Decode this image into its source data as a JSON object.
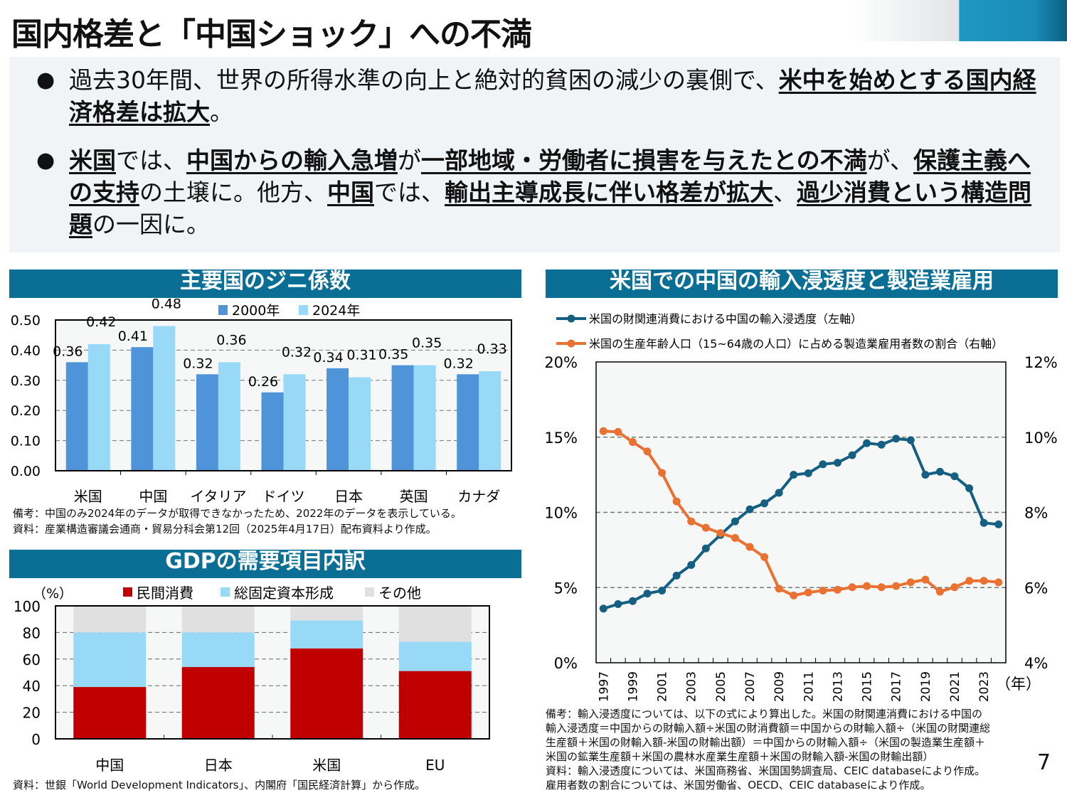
{
  "title": "国内格差と「中国ショック」への不満",
  "bullets": [
    {
      "segments": [
        {
          "text": "過去30年間、世界の所得水準の向上と絶対的貧困の減少の裏側で、",
          "em": false
        },
        {
          "text": "米中を始めとする国内経済格差は拡大",
          "em": true
        },
        {
          "text": "。",
          "em": false
        }
      ]
    },
    {
      "segments": [
        {
          "text": "米国",
          "em": true
        },
        {
          "text": "では、",
          "em": false
        },
        {
          "text": "中国からの輸入急増",
          "em": true
        },
        {
          "text": "が",
          "em": false
        },
        {
          "text": "一部地域・労働者に損害を与えたとの不満",
          "em": true
        },
        {
          "text": "が、",
          "em": false
        },
        {
          "text": "保護主義への支持",
          "em": true
        },
        {
          "text": "の土壌に。他方、",
          "em": false
        },
        {
          "text": "中国",
          "em": true
        },
        {
          "text": "では、",
          "em": false
        },
        {
          "text": "輸出主導成長に伴い格差が拡大",
          "em": true
        },
        {
          "text": "、",
          "em": false
        },
        {
          "text": "過少消費という構造問題",
          "em": true
        },
        {
          "text": "の一因に。",
          "em": false
        }
      ]
    }
  ],
  "colors": {
    "header": "#0b6f95",
    "bar2000": "#4f94d9",
    "bar2024": "#97d9f6",
    "consumption": "#c00000",
    "investment": "#97d9f6",
    "other": "#e0e0e0",
    "import": "#156082",
    "manufacturing": "#e97132",
    "plot_bg": "#f6f7f7"
  },
  "chart_data": [
    {
      "type": "bar",
      "title": "主要国のジニ係数",
      "categories": [
        "米国",
        "中国",
        "イタリア",
        "ドイツ",
        "日本",
        "英国",
        "カナダ"
      ],
      "series": [
        {
          "name": "2000年",
          "values": [
            0.36,
            0.41,
            0.32,
            0.26,
            0.34,
            0.35,
            0.32
          ],
          "labels": [
            "0.36",
            "0.41",
            "0.32",
            "0.26",
            "0.34",
            "0.35",
            "0.32"
          ]
        },
        {
          "name": "2024年",
          "values": [
            0.42,
            0.48,
            0.36,
            0.32,
            0.31,
            0.35,
            0.33
          ],
          "labels": [
            "0.42",
            "0.48",
            "0.36",
            "0.32",
            "0.31",
            "0.35",
            "0.33"
          ]
        }
      ],
      "yticks": [
        "0.00",
        "0.10",
        "0.20",
        "0.30",
        "0.40",
        "0.50"
      ],
      "ylim": [
        0,
        0.5
      ],
      "grid": true,
      "legend": "top",
      "notes": [
        "備考：中国のみ2024年のデータが取得できなかったため、2022年のデータを表示している。",
        "資料：産業構造審議会通商・貿易分科会第12回（2025年4月17日）配布資料より作成。"
      ]
    },
    {
      "type": "bar",
      "stacked": true,
      "title": "GDPの需要項目内訳",
      "ylabel": "（%）",
      "categories": [
        "中国",
        "日本",
        "米国",
        "EU"
      ],
      "series": [
        {
          "name": "民間消費",
          "values": [
            39,
            54,
            68,
            51
          ]
        },
        {
          "name": "総固定資本形成",
          "values": [
            41,
            26,
            21,
            22
          ]
        },
        {
          "name": "その他",
          "values": [
            20,
            20,
            11,
            27
          ]
        }
      ],
      "yticks": [
        "0",
        "20",
        "40",
        "60",
        "80",
        "100"
      ],
      "ylim": [
        0,
        100
      ],
      "grid": true,
      "legend": "top",
      "notes": [
        "資料：世銀「World Development Indicators」、内閣府「国民経済計算」から作成。"
      ]
    },
    {
      "type": "line",
      "title": "米国での中国の輸入浸透度と製造業雇用",
      "x": [
        1997,
        1998,
        1999,
        2000,
        2001,
        2002,
        2003,
        2004,
        2005,
        2006,
        2007,
        2008,
        2009,
        2010,
        2011,
        2012,
        2013,
        2014,
        2015,
        2016,
        2017,
        2018,
        2019,
        2020,
        2021,
        2022,
        2023,
        2024
      ],
      "xticks": [
        "1997",
        "1999",
        "2001",
        "2003",
        "2005",
        "2007",
        "2009",
        "2011",
        "2013",
        "2015",
        "2017",
        "2019",
        "2021",
        "2023"
      ],
      "xunit": "（年）",
      "series": [
        {
          "name": "米国の財関連消費における中国の輸入浸透度（左軸）",
          "axis": "left",
          "values": [
            3.6,
            3.9,
            4.1,
            4.6,
            4.8,
            5.8,
            6.5,
            7.6,
            8.5,
            9.4,
            10.2,
            10.6,
            11.3,
            12.5,
            12.6,
            13.2,
            13.3,
            13.8,
            14.6,
            14.5,
            14.9,
            14.8,
            12.5,
            12.7,
            12.4,
            11.6,
            9.3,
            9.2
          ]
        },
        {
          "name": "米国の生産年齢人口（15~64歳の人口）に占める製造業雇用者数の割合（右軸）",
          "axis": "right",
          "values": [
            10.16,
            10.14,
            9.87,
            9.62,
            9.05,
            8.29,
            7.76,
            7.59,
            7.45,
            7.32,
            7.08,
            6.81,
            5.97,
            5.79,
            5.87,
            5.92,
            5.94,
            6.01,
            6.04,
            6.01,
            6.04,
            6.14,
            6.21,
            5.89,
            6.01,
            6.18,
            6.18,
            6.14
          ]
        }
      ],
      "ylim_left": [
        0,
        20
      ],
      "ylim_right": [
        4,
        12
      ],
      "yticks_left": [
        "0%",
        "5%",
        "10%",
        "15%",
        "20%"
      ],
      "yticks_right": [
        "4%",
        "6%",
        "8%",
        "10%",
        "12%"
      ],
      "grid": true,
      "legend": "top",
      "notes": [
        "備考：輸入浸透度については、以下の式により算出した。米国の財関連消費における中国の",
        "輸入浸透度＝中国からの財輸入額÷米国の財消費額＝中国からの財輸入額÷（米国の財関連総",
        "生産額＋米国の財輸入額-米国の財輸出額）＝中国からの財輸入額÷（米国の製造業生産額＋",
        "米国の鉱業生産額＋米国の農林水産業生産額＋米国の財輸入額-米国の財輸出額）",
        "資料：輸入浸透度については、米国商務省、米国国勢調査局、CEIC databaseにより作成。",
        "雇用者数の割合については、米国労働省、OECD、CEIC databaseにより作成。"
      ]
    }
  ],
  "page_number": "7"
}
